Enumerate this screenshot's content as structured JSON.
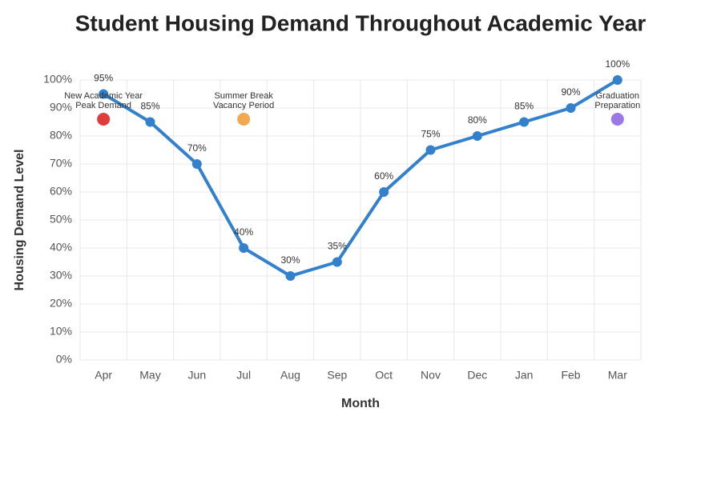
{
  "chart_data": {
    "type": "line",
    "title": "Student Housing Demand Throughout Academic Year",
    "x_label": "Month",
    "y_label": "Housing Demand Level",
    "categories": [
      "Apr",
      "May",
      "Jun",
      "Jul",
      "Aug",
      "Sep",
      "Oct",
      "Nov",
      "Dec",
      "Jan",
      "Feb",
      "Mar"
    ],
    "values": [
      95,
      85,
      70,
      40,
      30,
      35,
      60,
      75,
      80,
      85,
      90,
      100
    ],
    "value_labels": [
      "95%",
      "85%",
      "70%",
      "40%",
      "30%",
      "35%",
      "60%",
      "75%",
      "80%",
      "85%",
      "90%",
      "100%"
    ],
    "color": "#3380cc",
    "ylim": [
      0,
      100
    ],
    "yticks": [
      {
        "value": 0,
        "label": "0%"
      },
      {
        "value": 10,
        "label": "10%"
      },
      {
        "value": 20,
        "label": "20%"
      },
      {
        "value": 30,
        "label": "30%"
      },
      {
        "value": 40,
        "label": "40%"
      },
      {
        "value": 50,
        "label": "50%"
      },
      {
        "value": 60,
        "label": "60%"
      },
      {
        "value": 70,
        "label": "70%"
      },
      {
        "value": 80,
        "label": "80%"
      },
      {
        "value": 90,
        "label": "90%"
      },
      {
        "value": 100,
        "label": "100%"
      }
    ],
    "grid": true,
    "annotations": [
      {
        "category": "Apr",
        "y": 86,
        "text": [
          "New Academic Year",
          "Peak Demand"
        ],
        "color": "#e03c3c"
      },
      {
        "category": "Jul",
        "y": 86,
        "text": [
          "Summer Break",
          "Vacancy Period"
        ],
        "color": "#f2a84e"
      },
      {
        "category": "Mar",
        "y": 86,
        "text": [
          "Graduation",
          "Preparation"
        ],
        "color": "#9c78e6"
      }
    ]
  }
}
